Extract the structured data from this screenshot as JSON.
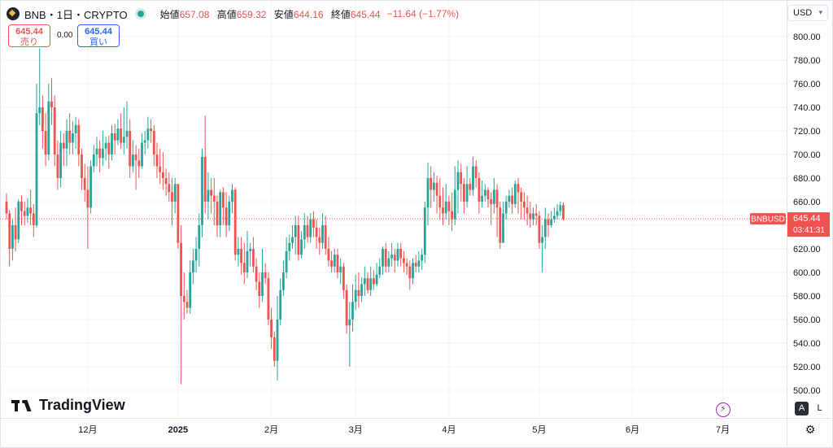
{
  "header": {
    "symbol": "BNB・1日・CRYPTO",
    "open_label": "始値",
    "open": "657.08",
    "high_label": "高値",
    "high": "659.32",
    "low_label": "安値",
    "low": "644.16",
    "close_label": "終値",
    "close": "645.44",
    "change": "−11.64 (−1.77%)"
  },
  "trade": {
    "sell_price": "645.44",
    "sell_label": "売り",
    "spread": "0.00",
    "buy_price": "645.44",
    "buy_label": "買い"
  },
  "currency": "USD",
  "price_tag": {
    "ticker": "BNBUSD",
    "price": "645.44",
    "countdown": "03:41:31"
  },
  "branding": "TradingView",
  "buttons": {
    "auto": "A",
    "log": "L"
  },
  "colors": {
    "up": "#26a69a",
    "down": "#ef5350",
    "grid": "#f0f3fa",
    "axis_text": "#131722"
  },
  "chart_data": {
    "type": "candlestick",
    "y_axis": {
      "min": 500,
      "max": 800,
      "ticks": [
        "500.00",
        "520.00",
        "540.00",
        "560.00",
        "580.00",
        "600.00",
        "620.00",
        "640.00",
        "660.00",
        "680.00",
        "700.00",
        "720.00",
        "740.00",
        "760.00",
        "780.00",
        "800.00"
      ]
    },
    "x_axis": {
      "labels": [
        {
          "text": "12月",
          "day": 27
        },
        {
          "text": "2025",
          "day": 57
        },
        {
          "text": "2月",
          "day": 88
        },
        {
          "text": "3月",
          "day": 116
        },
        {
          "text": "4月",
          "day": 147
        },
        {
          "text": "5月",
          "day": 177
        },
        {
          "text": "6月",
          "day": 208
        },
        {
          "text": "7月",
          "day": 238
        }
      ]
    },
    "last_price": 645.44,
    "candles": [
      [
        660,
        650,
        667,
        645
      ],
      [
        650,
        620,
        653,
        605
      ],
      [
        620,
        640,
        645,
        610
      ],
      [
        640,
        628,
        655,
        618
      ],
      [
        628,
        660,
        662,
        625
      ],
      [
        660,
        652,
        665,
        640
      ],
      [
        652,
        648,
        660,
        640
      ],
      [
        648,
        655,
        663,
        642
      ],
      [
        655,
        650,
        670,
        640
      ],
      [
        650,
        640,
        658,
        630
      ],
      [
        640,
        735,
        760,
        638
      ],
      [
        735,
        740,
        790,
        725
      ],
      [
        740,
        720,
        750,
        705
      ],
      [
        720,
        700,
        735,
        690
      ],
      [
        700,
        745,
        760,
        695
      ],
      [
        745,
        740,
        765,
        725
      ],
      [
        740,
        700,
        750,
        690
      ],
      [
        700,
        680,
        712,
        670
      ],
      [
        680,
        710,
        720,
        672
      ],
      [
        710,
        705,
        718,
        690
      ],
      [
        705,
        720,
        730,
        690
      ],
      [
        720,
        710,
        735,
        700
      ],
      [
        710,
        718,
        728,
        700
      ],
      [
        718,
        725,
        732,
        705
      ],
      [
        725,
        700,
        730,
        690
      ],
      [
        700,
        680,
        705,
        670
      ],
      [
        680,
        670,
        692,
        660
      ],
      [
        670,
        655,
        690,
        620
      ],
      [
        655,
        690,
        695,
        650
      ],
      [
        690,
        700,
        708,
        685
      ],
      [
        700,
        705,
        715,
        690
      ],
      [
        705,
        697,
        712,
        685
      ],
      [
        697,
        705,
        720,
        690
      ],
      [
        705,
        710,
        715,
        695
      ],
      [
        710,
        700,
        716,
        688
      ],
      [
        700,
        718,
        725,
        695
      ],
      [
        718,
        712,
        726,
        700
      ],
      [
        712,
        722,
        730,
        708
      ],
      [
        722,
        710,
        735,
        705
      ],
      [
        710,
        715,
        740,
        700
      ],
      [
        715,
        720,
        745,
        705
      ],
      [
        720,
        690,
        730,
        680
      ],
      [
        690,
        700,
        712,
        685
      ],
      [
        700,
        695,
        708,
        670
      ],
      [
        695,
        690,
        705,
        680
      ],
      [
        690,
        710,
        718,
        688
      ],
      [
        710,
        712,
        720,
        700
      ],
      [
        712,
        722,
        732,
        705
      ],
      [
        722,
        720,
        730,
        710
      ],
      [
        720,
        700,
        725,
        690
      ],
      [
        700,
        690,
        710,
        680
      ],
      [
        690,
        685,
        705,
        675
      ],
      [
        685,
        680,
        702,
        670
      ],
      [
        680,
        675,
        688,
        665
      ],
      [
        675,
        668,
        685,
        660
      ],
      [
        668,
        660,
        680,
        640
      ],
      [
        660,
        675,
        680,
        650
      ],
      [
        675,
        625,
        675,
        620
      ],
      [
        625,
        580,
        640,
        505
      ],
      [
        580,
        575,
        600,
        560
      ],
      [
        575,
        570,
        585,
        565
      ],
      [
        570,
        600,
        610,
        565
      ],
      [
        600,
        610,
        620,
        590
      ],
      [
        610,
        620,
        630,
        600
      ],
      [
        620,
        640,
        650,
        605
      ],
      [
        640,
        698,
        705,
        630
      ],
      [
        698,
        660,
        733,
        650
      ],
      [
        660,
        670,
        685,
        645
      ],
      [
        670,
        665,
        680,
        650
      ],
      [
        665,
        660,
        680,
        640
      ],
      [
        660,
        640,
        665,
        630
      ],
      [
        640,
        668,
        670,
        630
      ],
      [
        668,
        655,
        672,
        640
      ],
      [
        655,
        640,
        668,
        630
      ],
      [
        640,
        660,
        665,
        635
      ],
      [
        660,
        670,
        675,
        650
      ],
      [
        670,
        615,
        672,
        610
      ],
      [
        615,
        620,
        630,
        605
      ],
      [
        620,
        608,
        630,
        598
      ],
      [
        608,
        600,
        625,
        590
      ],
      [
        600,
        618,
        635,
        595
      ],
      [
        618,
        620,
        625,
        605
      ],
      [
        620,
        605,
        630,
        600
      ],
      [
        605,
        592,
        612,
        585
      ],
      [
        592,
        580,
        600,
        570
      ],
      [
        580,
        600,
        620,
        575
      ],
      [
        600,
        595,
        608,
        590
      ],
      [
        595,
        560,
        600,
        555
      ],
      [
        560,
        545,
        570,
        535
      ],
      [
        545,
        525,
        550,
        520
      ],
      [
        525,
        560,
        580,
        508
      ],
      [
        560,
        585,
        595,
        555
      ],
      [
        585,
        600,
        610,
        580
      ],
      [
        600,
        618,
        630,
        595
      ],
      [
        618,
        625,
        632,
        610
      ],
      [
        625,
        630,
        640,
        620
      ],
      [
        630,
        640,
        648,
        615
      ],
      [
        640,
        615,
        648,
        610
      ],
      [
        615,
        628,
        635,
        612
      ],
      [
        628,
        640,
        650,
        620
      ],
      [
        640,
        630,
        648,
        625
      ],
      [
        630,
        645,
        650,
        625
      ],
      [
        645,
        638,
        652,
        630
      ],
      [
        638,
        630,
        645,
        620
      ],
      [
        630,
        625,
        638,
        615
      ],
      [
        625,
        640,
        650,
        620
      ],
      [
        640,
        620,
        648,
        615
      ],
      [
        620,
        610,
        630,
        605
      ],
      [
        610,
        605,
        618,
        600
      ],
      [
        605,
        615,
        620,
        600
      ],
      [
        615,
        600,
        620,
        595
      ],
      [
        600,
        605,
        612,
        590
      ],
      [
        605,
        585,
        608,
        578
      ],
      [
        585,
        555,
        590,
        548
      ],
      [
        555,
        560,
        575,
        520
      ],
      [
        560,
        575,
        590,
        550
      ],
      [
        575,
        585,
        598,
        568
      ],
      [
        585,
        580,
        600,
        570
      ],
      [
        580,
        590,
        596,
        575
      ],
      [
        590,
        595,
        605,
        580
      ],
      [
        595,
        585,
        600,
        582
      ],
      [
        585,
        595,
        605,
        580
      ],
      [
        595,
        590,
        602,
        585
      ],
      [
        590,
        598,
        608,
        588
      ],
      [
        598,
        605,
        612,
        595
      ],
      [
        605,
        620,
        622,
        598
      ],
      [
        620,
        605,
        625,
        600
      ],
      [
        605,
        612,
        618,
        600
      ],
      [
        612,
        615,
        625,
        605
      ],
      [
        615,
        610,
        620,
        600
      ],
      [
        610,
        620,
        625,
        605
      ],
      [
        620,
        612,
        625,
        605
      ],
      [
        612,
        608,
        618,
        600
      ],
      [
        608,
        605,
        612,
        598
      ],
      [
        605,
        595,
        610,
        585
      ],
      [
        595,
        608,
        612,
        590
      ],
      [
        608,
        605,
        615,
        600
      ],
      [
        605,
        610,
        618,
        600
      ],
      [
        610,
        615,
        620,
        602
      ],
      [
        615,
        655,
        660,
        608
      ],
      [
        655,
        680,
        693,
        640
      ],
      [
        680,
        670,
        690,
        655
      ],
      [
        670,
        676,
        685,
        660
      ],
      [
        676,
        665,
        682,
        650
      ],
      [
        665,
        655,
        680,
        645
      ],
      [
        655,
        650,
        672,
        640
      ],
      [
        650,
        660,
        675,
        645
      ],
      [
        660,
        652,
        665,
        640
      ],
      [
        652,
        645,
        668,
        635
      ],
      [
        645,
        670,
        690,
        640
      ],
      [
        670,
        685,
        695,
        650
      ],
      [
        685,
        675,
        692,
        660
      ],
      [
        675,
        660,
        680,
        650
      ],
      [
        660,
        675,
        690,
        655
      ],
      [
        675,
        670,
        680,
        665
      ],
      [
        670,
        690,
        698,
        665
      ],
      [
        690,
        680,
        695,
        672
      ],
      [
        680,
        660,
        685,
        650
      ],
      [
        660,
        665,
        678,
        655
      ],
      [
        665,
        670,
        675,
        660
      ],
      [
        670,
        662,
        672,
        655
      ],
      [
        662,
        658,
        668,
        640
      ],
      [
        658,
        670,
        680,
        650
      ],
      [
        670,
        655,
        675,
        630
      ],
      [
        655,
        625,
        660,
        620
      ],
      [
        625,
        650,
        660,
        625
      ],
      [
        650,
        660,
        665,
        645
      ],
      [
        660,
        665,
        670,
        655
      ],
      [
        665,
        658,
        672,
        650
      ],
      [
        658,
        675,
        678,
        655
      ],
      [
        675,
        668,
        680,
        650
      ],
      [
        668,
        660,
        672,
        645
      ],
      [
        660,
        655,
        668,
        645
      ],
      [
        655,
        650,
        665,
        640
      ],
      [
        650,
        645,
        660,
        638
      ],
      [
        645,
        650,
        655,
        640
      ],
      [
        650,
        648,
        658,
        640
      ],
      [
        648,
        625,
        652,
        620
      ],
      [
        625,
        630,
        640,
        600
      ],
      [
        630,
        645,
        655,
        620
      ],
      [
        645,
        640,
        650,
        630
      ],
      [
        640,
        645,
        652,
        638
      ],
      [
        645,
        648,
        655,
        642
      ],
      [
        648,
        652,
        658,
        645
      ],
      [
        652,
        657,
        660,
        648
      ],
      [
        657,
        645.44,
        659.32,
        644.16
      ]
    ]
  }
}
